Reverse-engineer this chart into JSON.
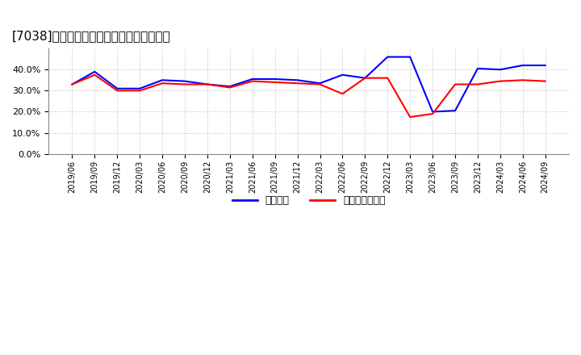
{
  "title": "[7038]　固定比率、固定長期適合率の推移",
  "x_labels": [
    "2019/06",
    "2019/09",
    "2019/12",
    "2020/03",
    "2020/06",
    "2020/09",
    "2020/12",
    "2021/03",
    "2021/06",
    "2021/09",
    "2021/12",
    "2022/03",
    "2022/06",
    "2022/09",
    "2022/12",
    "2023/03",
    "2023/06",
    "2023/09",
    "2023/12",
    "2024/03",
    "2024/06",
    "2024/09"
  ],
  "fixed_ratio": [
    33.0,
    39.0,
    31.0,
    31.0,
    35.0,
    34.5,
    33.0,
    32.0,
    35.5,
    35.5,
    35.0,
    33.5,
    37.5,
    36.0,
    46.0,
    46.0,
    20.0,
    20.5,
    40.5,
    40.0,
    42.0,
    42.0
  ],
  "fixed_long_ratio": [
    33.0,
    37.5,
    30.0,
    30.0,
    33.5,
    33.0,
    33.0,
    31.5,
    34.5,
    34.0,
    33.5,
    33.0,
    28.5,
    36.0,
    36.0,
    17.5,
    19.0,
    33.0,
    33.0,
    34.5,
    35.0,
    34.5
  ],
  "line_color_blue": "#0000FF",
  "line_color_red": "#FF0000",
  "background_color": "#FFFFFF",
  "grid_color": "#BBBBBB",
  "ylim": [
    0.0,
    50.0
  ],
  "yticks": [
    0.0,
    10.0,
    20.0,
    30.0,
    40.0
  ],
  "legend_blue": "固定比率",
  "legend_red": "固定長期適合率",
  "title_fontsize": 11,
  "tick_fontsize": 7,
  "legend_fontsize": 9
}
